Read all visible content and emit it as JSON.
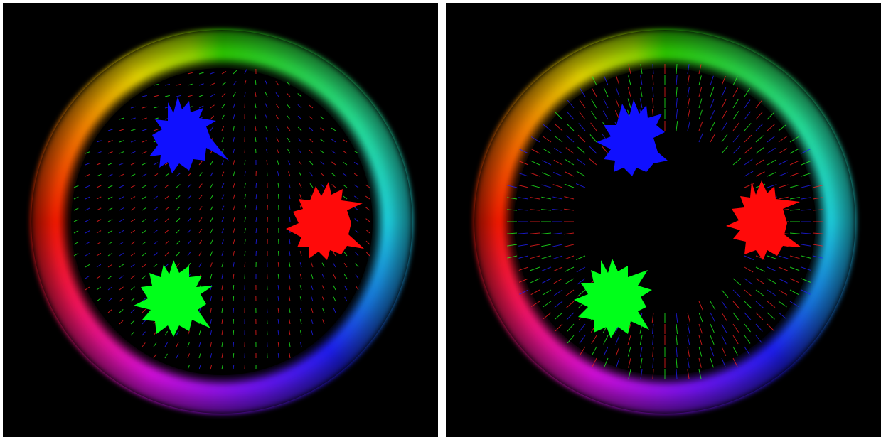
{
  "panels": [
    {
      "name": "left",
      "field": "diffuse",
      "ring_colors": [
        "#2fd600",
        "#1fd6e6",
        "#2020ff",
        "#e010e8",
        "#ff1a00",
        "#f0e000"
      ],
      "blobs": [
        {
          "color": "#1010ff",
          "label": "blue-blob"
        },
        {
          "color": "#ff0a0a",
          "label": "red-blob"
        },
        {
          "color": "#00ff1a",
          "label": "green-blob"
        }
      ]
    },
    {
      "name": "right",
      "field": "radial",
      "ring_colors": [
        "#2fd600",
        "#1fd6e6",
        "#2020ff",
        "#e010e8",
        "#ff1a00",
        "#f0e000"
      ],
      "blobs": [
        {
          "color": "#1010ff",
          "label": "blue-blob"
        },
        {
          "color": "#ff0a0a",
          "label": "red-blob"
        },
        {
          "color": "#00ff1a",
          "label": "green-blob"
        }
      ]
    }
  ]
}
